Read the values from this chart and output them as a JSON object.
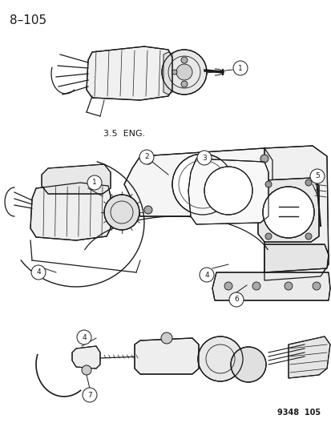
{
  "page_number": "8–105",
  "figure_number": "9348  105",
  "label_35eng": "3.5  ENG.",
  "bg_color": "#ffffff",
  "line_color": "#1a1a1a",
  "text_color": "#1a1a1a",
  "page_num_fontsize": 11,
  "label_fontsize": 8,
  "callout_fontsize": 7,
  "fignum_fontsize": 7
}
